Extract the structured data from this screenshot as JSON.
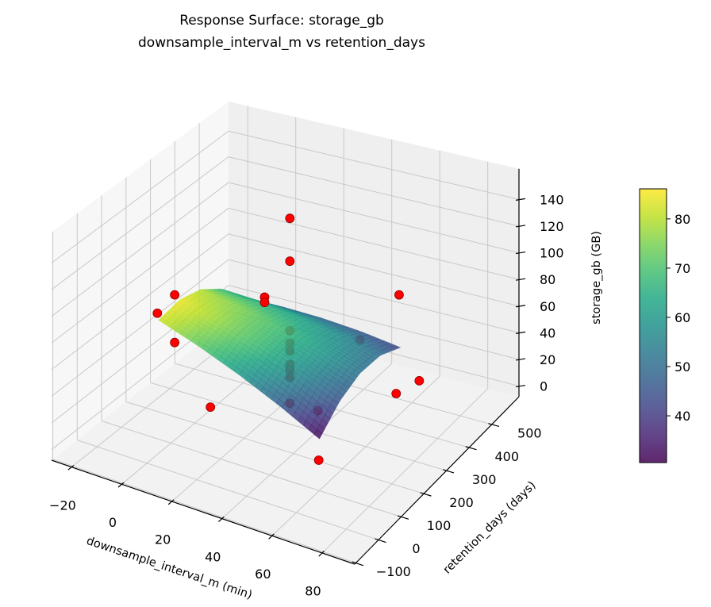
{
  "chart_data": {
    "type": "surface3d",
    "title": "Response Surface: storage_gb",
    "subtitle": "downsample_interval_m vs retention_days",
    "xlabel": "downsample_interval_m (min)",
    "ylabel": "retention_days (days)",
    "zlabel": "storage_gb (GB)",
    "xlim": [
      -28,
      93
    ],
    "ylim": [
      -105,
      620
    ],
    "zlim": [
      -8,
      163
    ],
    "xticks": [
      -20,
      0,
      20,
      40,
      60,
      80
    ],
    "xtick_labels": [
      "−20",
      "0",
      "20",
      "40",
      "60",
      "80"
    ],
    "yticks": [
      -100,
      0,
      100,
      200,
      300,
      400,
      500
    ],
    "ytick_labels": [
      "−100",
      "0",
      "100",
      "200",
      "300",
      "400",
      "500"
    ],
    "zticks": [
      0,
      20,
      40,
      60,
      80,
      100,
      120,
      140
    ],
    "ztick_labels": [
      "0",
      "20",
      "40",
      "60",
      "80",
      "100",
      "120",
      "140"
    ],
    "grid": true,
    "colormap": "viridis",
    "colorbar": {
      "vmin": 30.5,
      "vmax": 86.1,
      "ticks": [
        40,
        50,
        60,
        70,
        80
      ],
      "tick_labels": [
        "40",
        "50",
        "60",
        "70",
        "80"
      ],
      "placement": "right"
    },
    "surface": {
      "x": [
        -5,
        11.25,
        27.5,
        43.75,
        60
      ],
      "y": [
        100,
        187.5,
        275,
        362.5,
        450
      ],
      "z": [
        [
          82.0,
          71.9,
          60.0,
          46.4,
          31.0
        ],
        [
          84.5,
          77.3,
          68.3,
          57.5,
          45.0
        ],
        [
          79.5,
          75.1,
          69.0,
          61.1,
          51.5
        ],
        [
          67.0,
          65.5,
          62.3,
          57.3,
          50.5
        ],
        [
          47.0,
          48.4,
          48.0,
          45.9,
          42.0
        ]
      ]
    },
    "points": [
      {
        "x": 29,
        "y": 300,
        "z": 148
      },
      {
        "x": 29,
        "y": 300,
        "z": 115.5
      },
      {
        "x": 29,
        "y": 300,
        "z": 62.8
      },
      {
        "x": 29,
        "y": 300,
        "z": 53.4
      },
      {
        "x": 29,
        "y": 300,
        "z": 47.4
      },
      {
        "x": 29,
        "y": 300,
        "z": 37.2
      },
      {
        "x": 29,
        "y": 300,
        "z": 33.0
      },
      {
        "x": 29,
        "y": 300,
        "z": 27.6
      },
      {
        "x": 29,
        "y": 300,
        "z": 7.8
      },
      {
        "x": -5,
        "y": 95,
        "z": 88
      },
      {
        "x": 2,
        "y": 95,
        "z": 106
      },
      {
        "x": 2,
        "y": 95,
        "z": 70
      },
      {
        "x": 3,
        "y": 460,
        "z": 50
      },
      {
        "x": 3,
        "y": 460,
        "z": 46
      },
      {
        "x": 25.5,
        "y": 0,
        "z": 50
      },
      {
        "x": 69,
        "y": 0,
        "z": 37
      },
      {
        "x": 45,
        "y": 600,
        "z": 50
      },
      {
        "x": 43.3,
        "y": 450,
        "z": 39.3
      },
      {
        "x": 50,
        "y": 200,
        "z": 30
      },
      {
        "x": 63,
        "y": 400,
        "z": 17
      },
      {
        "x": 63,
        "y": 500,
        "z": 10
      }
    ],
    "point_color": "#ff0000",
    "point_edge_color": "#8b0000"
  }
}
